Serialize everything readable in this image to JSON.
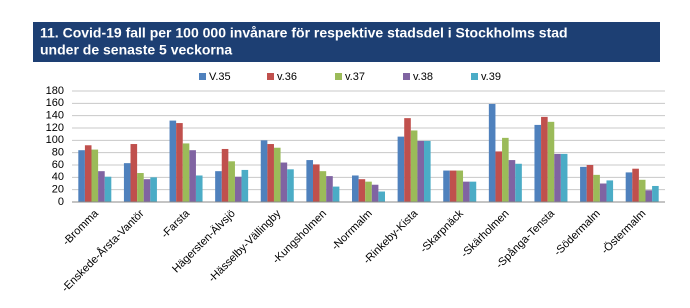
{
  "chart_data": {
    "type": "bar",
    "title": [
      "11. Covid-19 fall per 100 000 invånare för respektive stadsdel i Stockholms stad",
      "under de senaste 5 veckorna"
    ],
    "categories": [
      "-Bromma",
      "-Enskede-Årsta-Vantör",
      "-Farsta",
      "Hägersten-Älvsjö",
      "-Hässelby-Vällingby",
      "-Kungsholmen",
      "-Norrmalm",
      "-Rinkeby-Kista",
      "-Skarpnäck",
      "-Skärholmen",
      "-Spånga-Tensta",
      "-Södermalm",
      "-Östermalm"
    ],
    "series": [
      {
        "name": "V.35",
        "color": "#4f81bd",
        "values": [
          84,
          63,
          132,
          50,
          100,
          68,
          43,
          106,
          51,
          159,
          125,
          57,
          48
        ]
      },
      {
        "name": "v.36",
        "color": "#c0504d",
        "values": [
          92,
          94,
          128,
          86,
          94,
          61,
          37,
          136,
          51,
          82,
          138,
          60,
          54
        ]
      },
      {
        "name": "v.37",
        "color": "#9bbb59",
        "values": [
          85,
          47,
          95,
          66,
          88,
          50,
          33,
          116,
          51,
          104,
          130,
          44,
          36
        ]
      },
      {
        "name": "v.38",
        "color": "#8064a2",
        "values": [
          50,
          37,
          84,
          41,
          64,
          42,
          28,
          99,
          33,
          68,
          78,
          30,
          19
        ]
      },
      {
        "name": "v.39",
        "color": "#4bacc6",
        "values": [
          41,
          40,
          43,
          52,
          53,
          25,
          17,
          99,
          33,
          62,
          78,
          35,
          26
        ]
      }
    ],
    "ylim": [
      0,
      180
    ],
    "yticks": [
      0,
      20,
      40,
      60,
      80,
      100,
      120,
      140,
      160,
      180
    ],
    "grid": true
  }
}
